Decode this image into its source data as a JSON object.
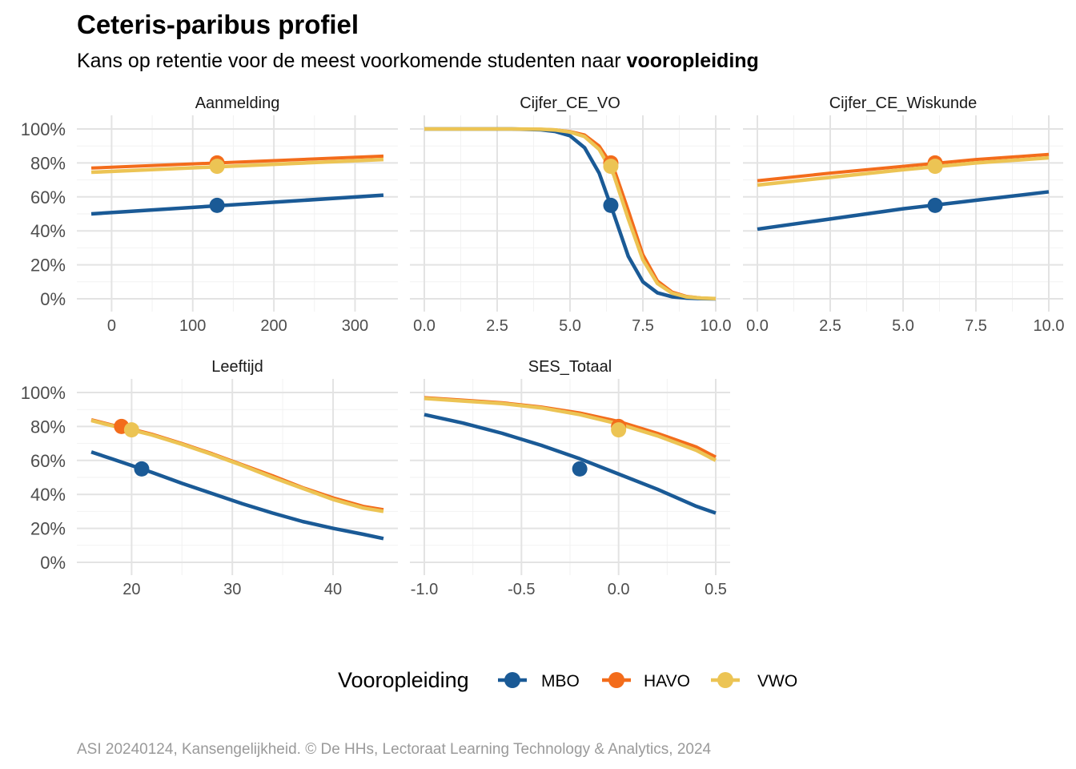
{
  "chart_data": {
    "type": "line",
    "title": "Ceteris-paribus profiel",
    "subtitle_prefix": "Kans op retentie voor de meest voorkomende studenten naar ",
    "subtitle_bold": "vooropleiding",
    "caption": "ASI 20240124, Kansengelijkheid. © De HHs, Lectoraat Learning Technology & Analytics, 2024",
    "ylim": [
      0,
      1
    ],
    "y_ticks": [
      0,
      0.2,
      0.4,
      0.6,
      0.8,
      1.0
    ],
    "y_tick_labels": [
      "0%",
      "20%",
      "40%",
      "60%",
      "80%",
      "100%"
    ],
    "legend": {
      "title": "Vooropleiding",
      "entries": [
        {
          "name": "MBO",
          "color": "#1a5a96"
        },
        {
          "name": "HAVO",
          "color": "#f36c1b"
        },
        {
          "name": "VWO",
          "color": "#ecc454"
        }
      ]
    },
    "panels": [
      {
        "name": "Aanmelding",
        "xlim": [
          -25,
          335
        ],
        "x_ticks": [
          0,
          100,
          200,
          300
        ],
        "x_tick_labels": [
          "0",
          "100",
          "200",
          "300"
        ],
        "series": [
          {
            "name": "MBO",
            "x": [
              -25,
              335
            ],
            "y": [
              0.5,
              0.61
            ],
            "point": [
              130,
              0.55
            ]
          },
          {
            "name": "HAVO",
            "x": [
              -25,
              335
            ],
            "y": [
              0.77,
              0.84
            ],
            "point": [
              130,
              0.8
            ]
          },
          {
            "name": "VWO",
            "x": [
              -25,
              335
            ],
            "y": [
              0.745,
              0.82
            ],
            "point": [
              130,
              0.78
            ]
          }
        ]
      },
      {
        "name": "Cijfer_CE_VO",
        "xlim": [
          0,
          10
        ],
        "x_ticks": [
          0,
          2.5,
          5,
          7.5,
          10
        ],
        "x_tick_labels": [
          "0.0",
          "2.5",
          "5.0",
          "7.5",
          "10.0"
        ],
        "series": [
          {
            "name": "MBO",
            "x": [
              0,
              1,
              2,
              3,
              4,
              4.5,
              5,
              5.5,
              6,
              6.5,
              7,
              7.5,
              8,
              8.5,
              9,
              9.5,
              10
            ],
            "y": [
              1.0,
              1.0,
              1.0,
              1.0,
              0.995,
              0.985,
              0.96,
              0.89,
              0.74,
              0.5,
              0.25,
              0.1,
              0.035,
              0.012,
              0.004,
              0.001,
              0.0
            ],
            "point": [
              6.4,
              0.55
            ]
          },
          {
            "name": "HAVO",
            "x": [
              0,
              1,
              2,
              3,
              4,
              4.5,
              5,
              5.5,
              6,
              6.5,
              7,
              7.5,
              8,
              8.5,
              9,
              9.5,
              10
            ],
            "y": [
              1.0,
              1.0,
              1.0,
              1.0,
              0.998,
              0.995,
              0.985,
              0.965,
              0.9,
              0.77,
              0.52,
              0.26,
              0.105,
              0.04,
              0.014,
              0.005,
              0.001
            ],
            "point": [
              6.4,
              0.8
            ]
          },
          {
            "name": "VWO",
            "x": [
              0,
              1,
              2,
              3,
              4,
              4.5,
              5,
              5.5,
              6,
              6.5,
              7,
              7.5,
              8,
              8.5,
              9,
              9.5,
              10
            ],
            "y": [
              1.0,
              1.0,
              1.0,
              1.0,
              0.998,
              0.994,
              0.982,
              0.955,
              0.88,
              0.73,
              0.47,
              0.23,
              0.09,
              0.033,
              0.011,
              0.004,
              0.001
            ],
            "point": [
              6.4,
              0.78
            ]
          }
        ]
      },
      {
        "name": "Cijfer_CE_Wiskunde",
        "xlim": [
          0,
          10
        ],
        "x_ticks": [
          0,
          2.5,
          5,
          7.5,
          10
        ],
        "x_tick_labels": [
          "0.0",
          "2.5",
          "5.0",
          "7.5",
          "10.0"
        ],
        "series": [
          {
            "name": "MBO",
            "x": [
              0,
              2.5,
              5,
              7.5,
              10
            ],
            "y": [
              0.41,
              0.47,
              0.53,
              0.58,
              0.63
            ],
            "point": [
              6.1,
              0.55
            ]
          },
          {
            "name": "HAVO",
            "x": [
              0,
              2.5,
              5,
              7.5,
              10
            ],
            "y": [
              0.695,
              0.74,
              0.78,
              0.82,
              0.85
            ],
            "point": [
              6.1,
              0.8
            ]
          },
          {
            "name": "VWO",
            "x": [
              0,
              2.5,
              5,
              7.5,
              10
            ],
            "y": [
              0.67,
              0.715,
              0.76,
              0.8,
              0.83
            ],
            "point": [
              6.1,
              0.78
            ]
          }
        ]
      },
      {
        "name": "Leeftijd",
        "xlim": [
          16,
          45
        ],
        "x_ticks": [
          20,
          30,
          40
        ],
        "x_tick_labels": [
          "20",
          "30",
          "40"
        ],
        "series": [
          {
            "name": "MBO",
            "x": [
              16,
              18,
              20,
              22,
              25,
              28,
              31,
              34,
              37,
              40,
              43,
              45
            ],
            "y": [
              0.65,
              0.61,
              0.57,
              0.53,
              0.465,
              0.405,
              0.345,
              0.29,
              0.24,
              0.2,
              0.165,
              0.14
            ],
            "point": [
              21,
              0.55
            ]
          },
          {
            "name": "HAVO",
            "x": [
              16,
              18,
              20,
              22,
              25,
              28,
              31,
              34,
              37,
              40,
              43,
              45
            ],
            "y": [
              0.84,
              0.81,
              0.785,
              0.755,
              0.7,
              0.64,
              0.575,
              0.51,
              0.44,
              0.38,
              0.33,
              0.31
            ],
            "point": [
              19,
              0.8
            ]
          },
          {
            "name": "VWO",
            "x": [
              16,
              18,
              20,
              22,
              25,
              28,
              31,
              34,
              37,
              40,
              43,
              45
            ],
            "y": [
              0.835,
              0.805,
              0.78,
              0.75,
              0.695,
              0.635,
              0.57,
              0.5,
              0.435,
              0.37,
              0.32,
              0.3
            ],
            "point": [
              20,
              0.78
            ]
          }
        ]
      },
      {
        "name": "SES_Totaal",
        "xlim": [
          -1.0,
          0.5
        ],
        "x_ticks": [
          -1.0,
          -0.5,
          0.0,
          0.5
        ],
        "x_tick_labels": [
          "-1.0",
          "-0.5",
          "0.0",
          "0.5"
        ],
        "series": [
          {
            "name": "MBO",
            "x": [
              -1.0,
              -0.8,
              -0.6,
              -0.4,
              -0.2,
              0.0,
              0.2,
              0.4,
              0.5
            ],
            "y": [
              0.87,
              0.82,
              0.76,
              0.69,
              0.61,
              0.52,
              0.43,
              0.33,
              0.29
            ],
            "point": [
              -0.2,
              0.55
            ]
          },
          {
            "name": "HAVO",
            "x": [
              -1.0,
              -0.8,
              -0.6,
              -0.4,
              -0.2,
              0.0,
              0.2,
              0.4,
              0.5
            ],
            "y": [
              0.97,
              0.955,
              0.94,
              0.915,
              0.88,
              0.83,
              0.76,
              0.68,
              0.62
            ],
            "point": [
              0.0,
              0.8
            ]
          },
          {
            "name": "VWO",
            "x": [
              -1.0,
              -0.8,
              -0.6,
              -0.4,
              -0.2,
              0.0,
              0.2,
              0.4,
              0.5
            ],
            "y": [
              0.965,
              0.95,
              0.935,
              0.91,
              0.87,
              0.815,
              0.745,
              0.66,
              0.6
            ],
            "point": [
              0.0,
              0.78
            ]
          }
        ]
      }
    ]
  }
}
